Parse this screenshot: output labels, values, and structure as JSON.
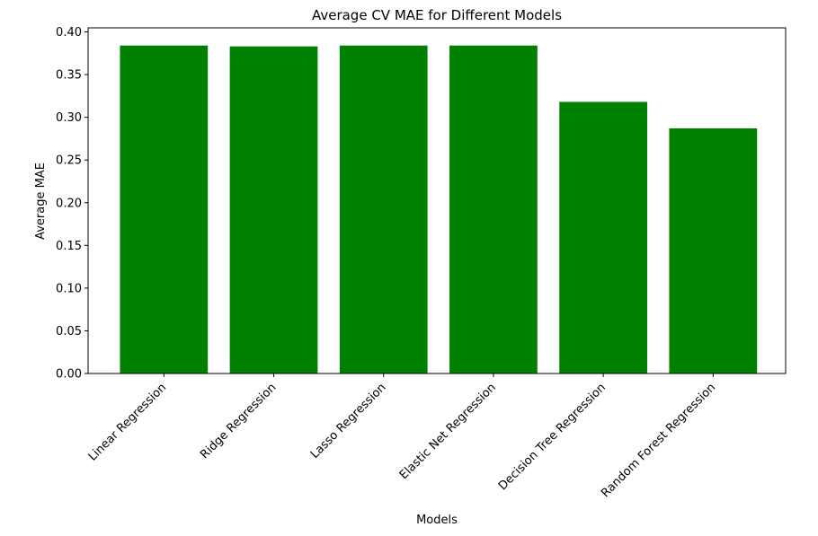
{
  "chart_data": {
    "type": "bar",
    "title": "Average CV MAE for Different Models",
    "xlabel": "Models",
    "ylabel": "Average MAE",
    "categories": [
      "Linear Regression",
      "Ridge Regression",
      "Lasso Regression",
      "Elastic Net Regression",
      "Decision Tree Regression",
      "Random Forest Regression"
    ],
    "values": [
      0.384,
      0.383,
      0.384,
      0.384,
      0.318,
      0.287
    ],
    "ylim": [
      0,
      0.4
    ],
    "yticks": [
      "0.00",
      "0.05",
      "0.10",
      "0.15",
      "0.20",
      "0.25",
      "0.30",
      "0.35",
      "0.40"
    ],
    "bar_color": "#008000",
    "grid": false,
    "legend": "none"
  }
}
